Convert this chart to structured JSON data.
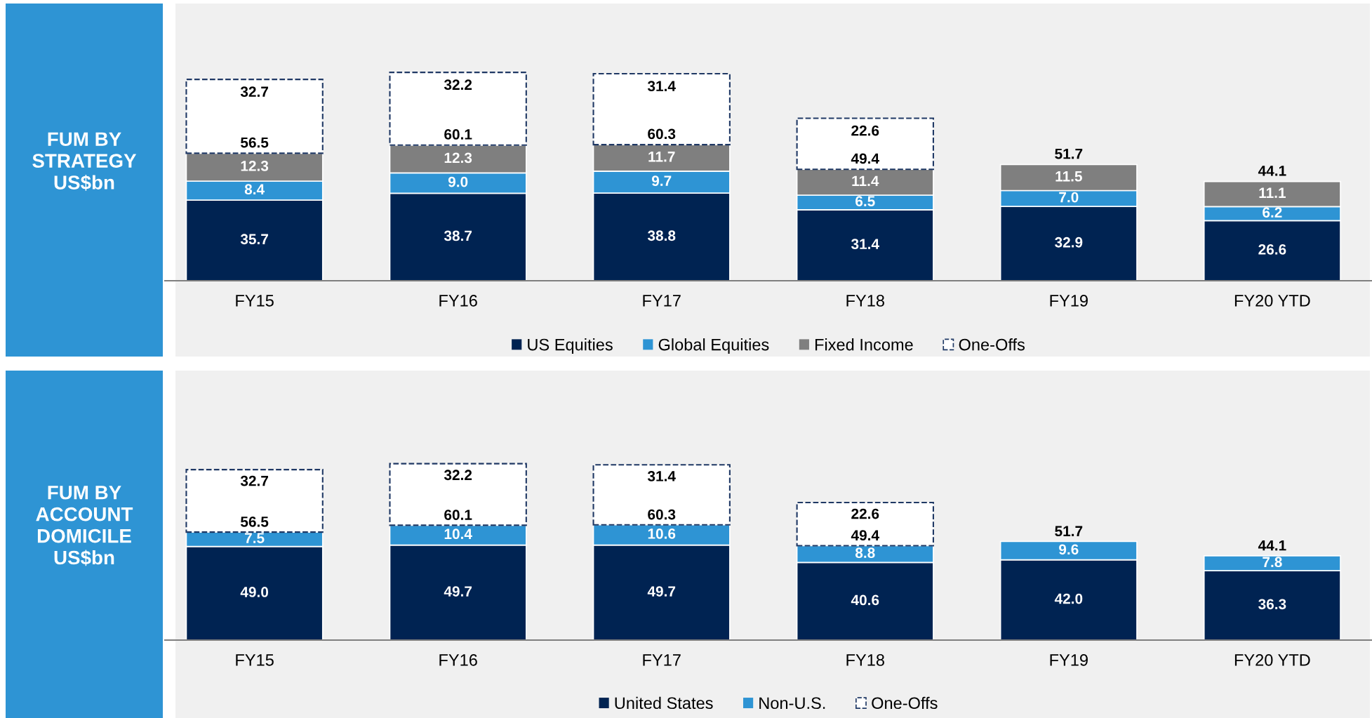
{
  "chart_data": [
    {
      "type": "bar",
      "stacked": true,
      "title": "FUM BY\nSTRATEGY\nUS$bn",
      "categories": [
        "FY15",
        "FY16",
        "FY17",
        "FY18",
        "FY19",
        "FY20 YTD"
      ],
      "tick_labels": "x",
      "legend": "bottom",
      "series": [
        {
          "name": "US Equities",
          "color": "#002352",
          "values": [
            35.7,
            38.7,
            38.8,
            31.4,
            32.9,
            26.6
          ],
          "value_labels": [
            "35.7",
            "38.7",
            "38.8",
            "31.4",
            "32.9",
            "26.6"
          ]
        },
        {
          "name": "Global Equities",
          "color": "#2e94d4",
          "values": [
            8.4,
            9.0,
            9.7,
            6.5,
            7.0,
            6.2
          ],
          "value_labels": [
            "8.4",
            "9.0",
            "9.7",
            "6.5",
            "7.0",
            "6.2"
          ]
        },
        {
          "name": "Fixed Income",
          "color": "#7f7f7f",
          "values": [
            12.3,
            12.3,
            11.7,
            11.4,
            11.5,
            11.1
          ],
          "value_labels": [
            "12.3",
            "12.3",
            "11.7",
            "11.4",
            "11.5",
            "11.1"
          ]
        },
        {
          "name": "One-Offs",
          "color": "#1f3864",
          "line_style": "dashed",
          "values": [
            32.7,
            32.2,
            31.4,
            22.6,
            null,
            null
          ],
          "value_labels": [
            "32.7",
            "32.2",
            "31.4",
            "22.6",
            null,
            null
          ]
        }
      ],
      "annotations": [
        {
          "text": "56.5",
          "x": "FY15",
          "y": 56.4
        },
        {
          "text": "60.1",
          "x": "FY16",
          "y": 60.0
        },
        {
          "text": "60.3",
          "x": "FY17",
          "y": 60.2
        },
        {
          "text": "49.4",
          "x": "FY18",
          "y": 49.3
        },
        {
          "text": "51.7",
          "x": "FY19",
          "y": 51.4
        },
        {
          "text": "44.1",
          "x": "FY20 YTD",
          "y": 43.9
        }
      ]
    },
    {
      "type": "bar",
      "stacked": true,
      "title": "FUM BY\nACCOUNT\nDOMICILE\nUS$bn",
      "categories": [
        "FY15",
        "FY16",
        "FY17",
        "FY18",
        "FY19",
        "FY20 YTD"
      ],
      "tick_labels": "x",
      "legend": "bottom",
      "series": [
        {
          "name": "United States",
          "color": "#002352",
          "values": [
            49.0,
            49.7,
            49.7,
            40.6,
            42.0,
            36.3
          ],
          "value_labels": [
            "49.0",
            "49.7",
            "49.7",
            "40.6",
            "42.0",
            "36.3"
          ]
        },
        {
          "name": "Non-U.S.",
          "color": "#2e94d4",
          "values": [
            7.5,
            10.4,
            10.6,
            8.8,
            9.6,
            7.8
          ],
          "value_labels": [
            "7.5",
            "10.4",
            "10.6",
            "8.8",
            "9.6",
            "7.8"
          ]
        },
        {
          "name": "One-Offs",
          "color": "#1f3864",
          "line_style": "dashed",
          "values": [
            32.7,
            32.2,
            31.4,
            22.6,
            null,
            null
          ],
          "value_labels": [
            "32.7",
            "32.2",
            "31.4",
            "22.6",
            null,
            null
          ]
        }
      ],
      "annotations": [
        {
          "text": "56.5",
          "x": "FY15",
          "y": 56.5
        },
        {
          "text": "60.1",
          "x": "FY16",
          "y": 60.1
        },
        {
          "text": "60.3",
          "x": "FY17",
          "y": 60.3
        },
        {
          "text": "49.4",
          "x": "FY18",
          "y": 49.4
        },
        {
          "text": "51.7",
          "x": "FY19",
          "y": 51.6
        },
        {
          "text": "44.1",
          "x": "FY20 YTD",
          "y": 44.1
        }
      ]
    }
  ]
}
